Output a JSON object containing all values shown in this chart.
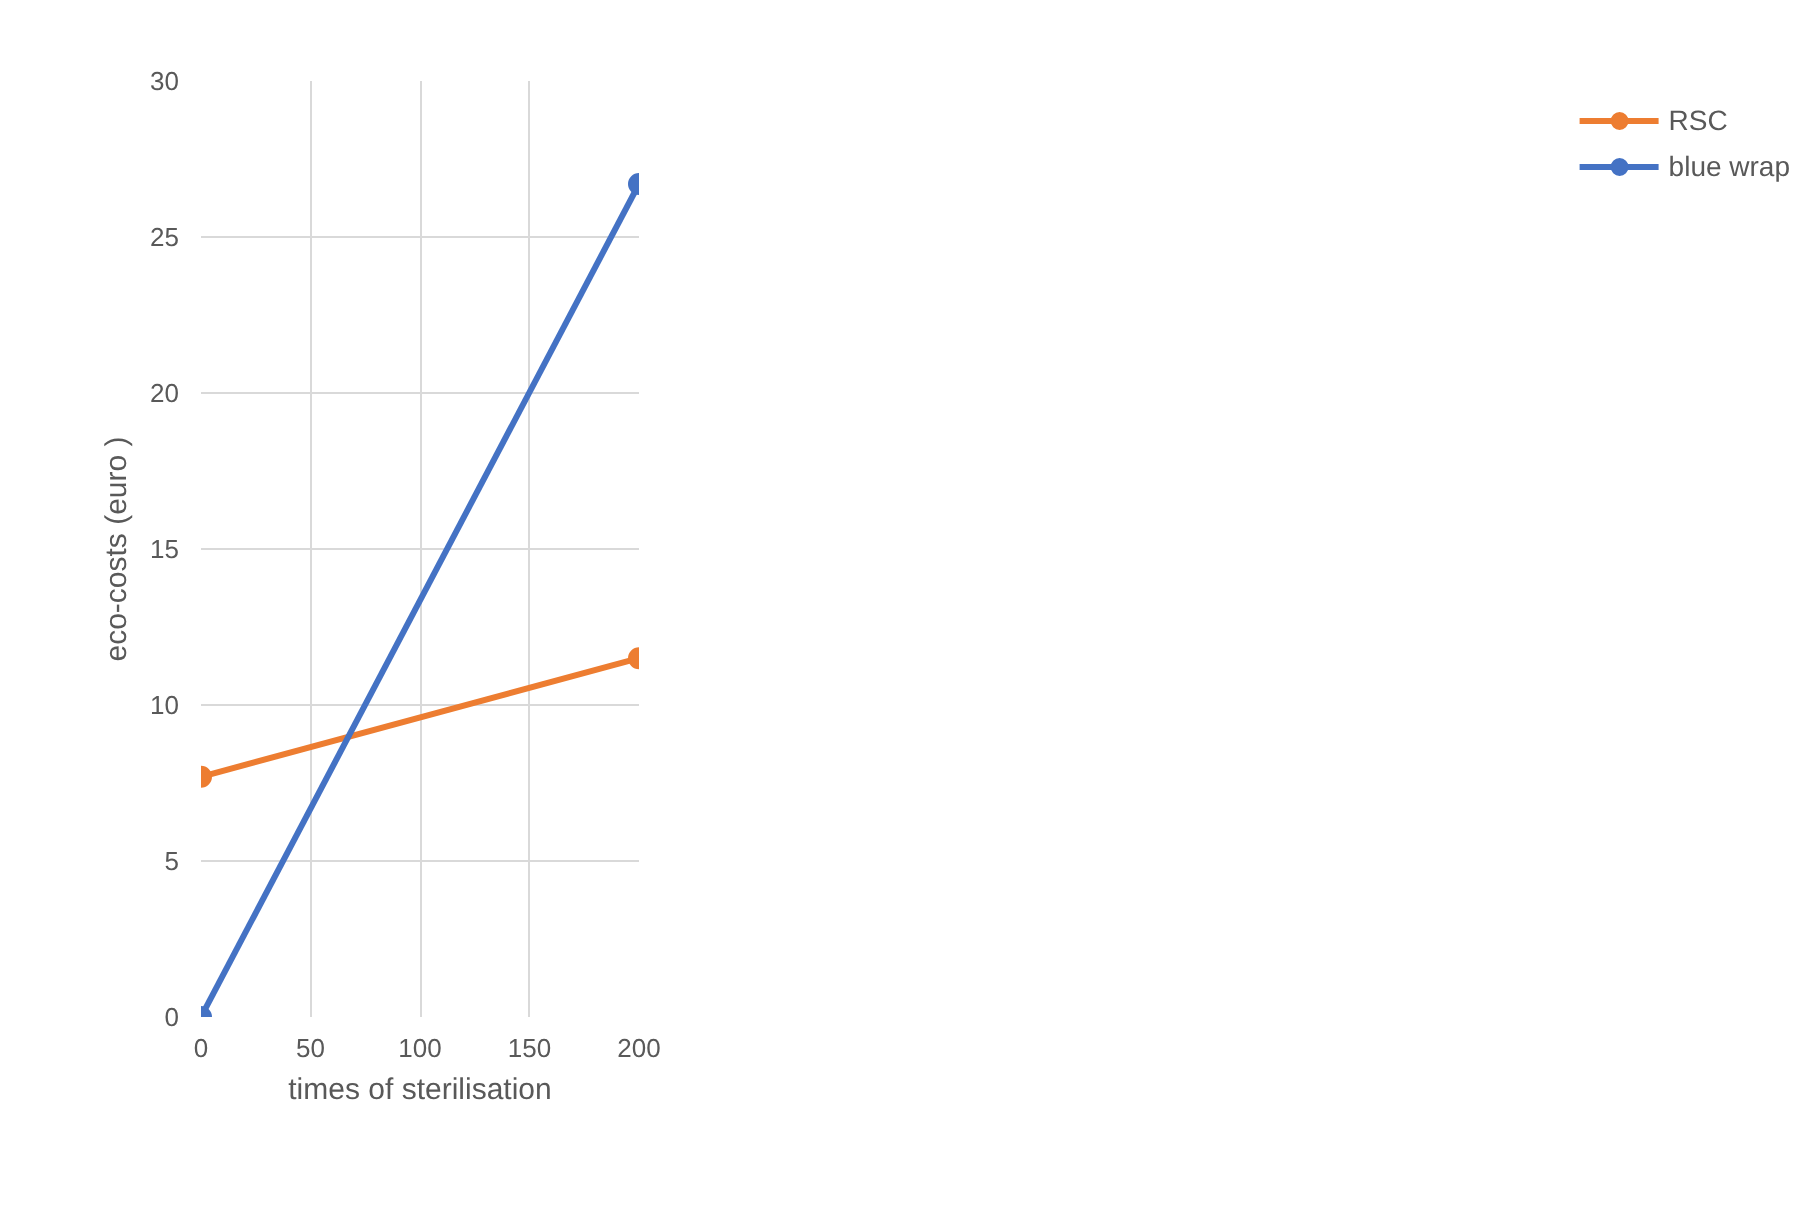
{
  "chart_data": {
    "type": "line",
    "xlabel": "times of sterilisation",
    "ylabel": "eco-costs (euro )",
    "x": [
      0,
      200
    ],
    "series": [
      {
        "name": "RSC",
        "color": "#ed7d31",
        "values": [
          7.7,
          11.5
        ]
      },
      {
        "name": "blue wrap",
        "color": "#4472c4",
        "values": [
          0,
          26.7
        ]
      }
    ],
    "xlim": [
      0,
      200
    ],
    "xticks": [
      0,
      50,
      100,
      150,
      200
    ],
    "ylim": [
      0,
      30
    ],
    "yticks": [
      0,
      5,
      10,
      15,
      20,
      25,
      30
    ],
    "grid": true,
    "legend": "right",
    "marker": "circle",
    "line_style": "solid"
  }
}
